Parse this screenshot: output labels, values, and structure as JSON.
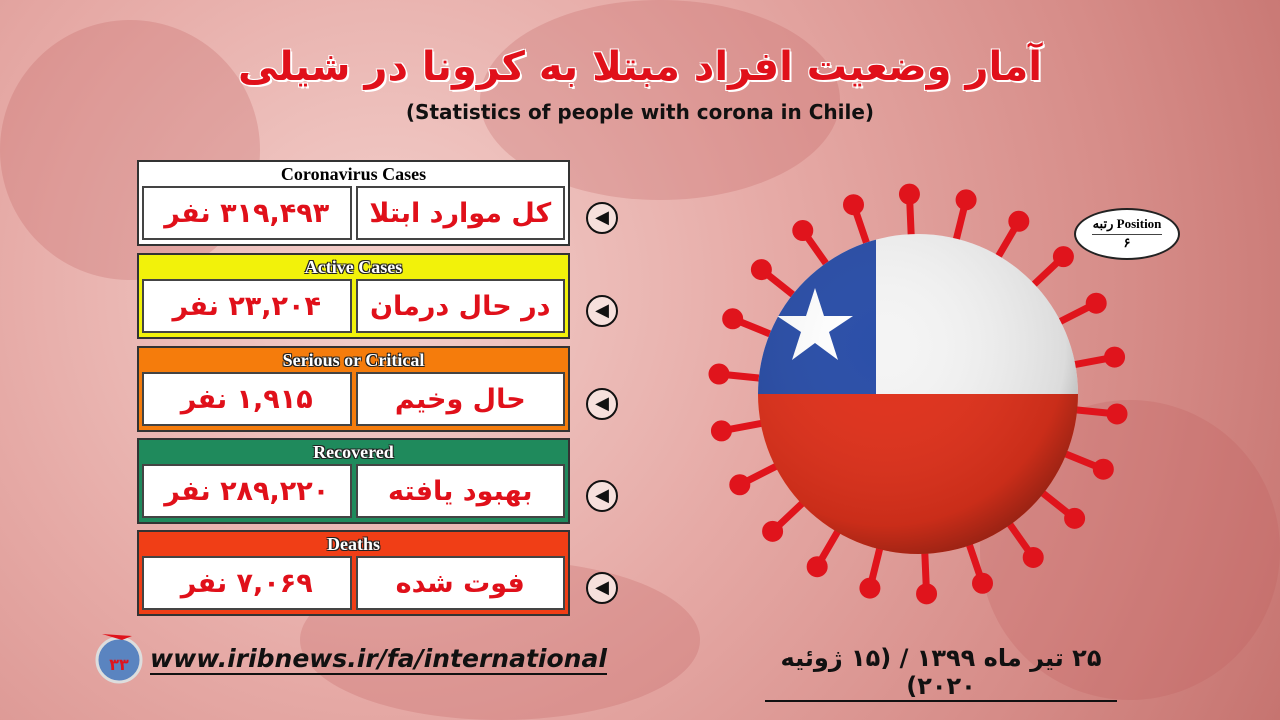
{
  "title": "آمار وضعیت افراد مبتلا به کرونا در شیلی",
  "subtitle": "(Statistics of people with corona in Chile)",
  "stats": [
    {
      "header": "Coronavirus Cases",
      "label": "کل موارد ابتلا",
      "value": "۳۱۹,۴۹۳ نفر",
      "color": "#ffffff"
    },
    {
      "header": "Active Cases",
      "label": "در حال درمان",
      "value": "۲۳,۲۰۴ نفر",
      "color": "#f2f20a"
    },
    {
      "header": "Serious or Critical",
      "label": "حال وخیم",
      "value": "۱,۹۱۵ نفر",
      "color": "#f57c0c"
    },
    {
      "header": "Recovered",
      "label": "بهبود یافته",
      "value": "۲۸۹,۲۲۰ نفر",
      "color": "#1f8a5c"
    },
    {
      "header": "Deaths",
      "label": "فوت شده",
      "value": "۷,۰۶۹ نفر",
      "color": "#f03e16"
    }
  ],
  "position": {
    "label": "رتبه Position",
    "value": "۶"
  },
  "footer": {
    "url": "www.iribnews.ir/fa/international",
    "date": "۲۵ تیر ماه ۱۳۹۹ / (۱۵ ژوئیه ۲۰۲۰)"
  },
  "icons": {
    "arrow": "arrow-left-circle-icon",
    "logo": "iribnews-logo",
    "flag": "chile-flag-virus"
  }
}
